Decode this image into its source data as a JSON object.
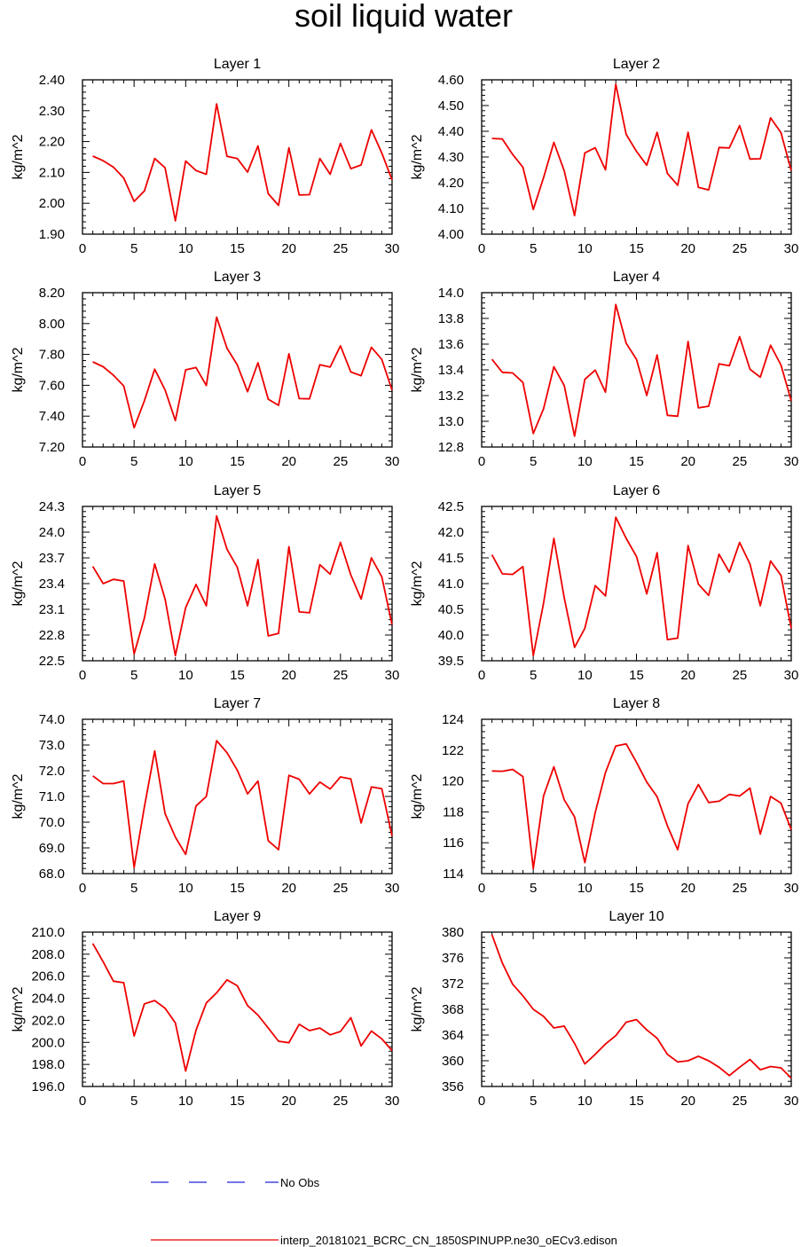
{
  "title": "soil liquid water",
  "legend": {
    "obs_label": "No Obs",
    "model_label": "interp_20181021_BCRC_CN_1850SPINUPP.ne30_oECv3.edison",
    "obs_color": "#2222dd",
    "model_color": "#ee0000"
  },
  "chart_data": [
    {
      "type": "line",
      "title": "Layer 1",
      "ylabel": "kg/m^2",
      "xlim": [
        0,
        30
      ],
      "ylim": [
        1.9,
        2.4
      ],
      "xticks": [
        "0",
        "5",
        "10",
        "15",
        "20",
        "25",
        "30"
      ],
      "yticks": [
        "1.90",
        "2.00",
        "2.10",
        "2.20",
        "2.30",
        "2.40"
      ],
      "x": [
        1,
        2,
        3,
        4,
        5,
        6,
        7,
        8,
        9,
        10,
        11,
        12,
        13,
        14,
        15,
        16,
        17,
        18,
        19,
        20,
        21,
        22,
        23,
        24,
        25,
        26,
        27,
        28,
        29,
        30
      ],
      "values": [
        2.153,
        2.138,
        2.117,
        2.082,
        2.006,
        2.04,
        2.145,
        2.115,
        1.943,
        2.137,
        2.106,
        2.094,
        2.322,
        2.152,
        2.145,
        2.101,
        2.186,
        2.031,
        1.993,
        2.18,
        2.027,
        2.028,
        2.145,
        2.094,
        2.194,
        2.112,
        2.124,
        2.238,
        2.163,
        2.076
      ]
    },
    {
      "type": "line",
      "title": "Layer 2",
      "ylabel": "kg/m^2",
      "xlim": [
        0,
        30
      ],
      "ylim": [
        4.0,
        4.6
      ],
      "xticks": [
        "0",
        "5",
        "10",
        "15",
        "20",
        "25",
        "30"
      ],
      "yticks": [
        "4.00",
        "4.10",
        "4.20",
        "4.30",
        "4.40",
        "4.50",
        "4.60"
      ],
      "x": [
        1,
        2,
        3,
        4,
        5,
        6,
        7,
        8,
        9,
        10,
        11,
        12,
        13,
        14,
        15,
        16,
        17,
        18,
        19,
        20,
        21,
        22,
        23,
        24,
        25,
        26,
        27,
        28,
        29,
        30
      ],
      "values": [
        4.372,
        4.37,
        4.31,
        4.26,
        4.096,
        4.22,
        4.357,
        4.246,
        4.072,
        4.316,
        4.336,
        4.25,
        4.583,
        4.388,
        4.322,
        4.268,
        4.396,
        4.236,
        4.19,
        4.396,
        4.182,
        4.172,
        4.337,
        4.335,
        4.422,
        4.292,
        4.293,
        4.452,
        4.395,
        4.247
      ]
    },
    {
      "type": "line",
      "title": "Layer 3",
      "ylabel": "kg/m^2",
      "xlim": [
        0,
        30
      ],
      "ylim": [
        7.2,
        8.2
      ],
      "xticks": [
        "0",
        "5",
        "10",
        "15",
        "20",
        "25",
        "30"
      ],
      "yticks": [
        "7.20",
        "7.40",
        "7.60",
        "7.80",
        "8.00",
        "8.20"
      ],
      "x": [
        1,
        2,
        3,
        4,
        5,
        6,
        7,
        8,
        9,
        10,
        11,
        12,
        13,
        14,
        15,
        16,
        17,
        18,
        19,
        20,
        21,
        22,
        23,
        24,
        25,
        26,
        27,
        28,
        29,
        30
      ],
      "values": [
        7.752,
        7.72,
        7.665,
        7.596,
        7.325,
        7.5,
        7.704,
        7.57,
        7.371,
        7.7,
        7.715,
        7.598,
        8.042,
        7.84,
        7.732,
        7.558,
        7.746,
        7.51,
        7.47,
        7.804,
        7.514,
        7.512,
        7.733,
        7.718,
        7.856,
        7.686,
        7.662,
        7.846,
        7.768,
        7.568
      ]
    },
    {
      "type": "line",
      "title": "Layer 4",
      "ylabel": "kg/m^2",
      "xlim": [
        0,
        30
      ],
      "ylim": [
        12.8,
        14.0
      ],
      "xticks": [
        "0",
        "5",
        "10",
        "15",
        "20",
        "25",
        "30"
      ],
      "yticks": [
        "12.8",
        "13.0",
        "13.2",
        "13.4",
        "13.6",
        "13.8",
        "14.0"
      ],
      "x": [
        1,
        2,
        3,
        4,
        5,
        6,
        7,
        8,
        9,
        10,
        11,
        12,
        13,
        14,
        15,
        16,
        17,
        18,
        19,
        20,
        21,
        22,
        23,
        24,
        25,
        26,
        27,
        28,
        29,
        30
      ],
      "values": [
        13.482,
        13.381,
        13.376,
        13.302,
        12.905,
        13.098,
        13.424,
        13.278,
        12.884,
        13.326,
        13.398,
        13.226,
        13.908,
        13.607,
        13.482,
        13.201,
        13.516,
        13.046,
        13.039,
        13.621,
        13.104,
        13.117,
        13.447,
        13.432,
        13.658,
        13.404,
        13.343,
        13.591,
        13.438,
        13.159
      ]
    },
    {
      "type": "line",
      "title": "Layer 5",
      "ylabel": "kg/m^2",
      "xlim": [
        0,
        30
      ],
      "ylim": [
        22.5,
        24.3
      ],
      "xticks": [
        "0",
        "5",
        "10",
        "15",
        "20",
        "25",
        "30"
      ],
      "yticks": [
        "22.5",
        "22.8",
        "23.1",
        "23.4",
        "23.7",
        "24.0",
        "24.3"
      ],
      "x": [
        1,
        2,
        3,
        4,
        5,
        6,
        7,
        8,
        9,
        10,
        11,
        12,
        13,
        14,
        15,
        16,
        17,
        18,
        19,
        20,
        21,
        22,
        23,
        24,
        25,
        26,
        27,
        28,
        29,
        30
      ],
      "values": [
        23.6,
        23.4,
        23.45,
        23.43,
        22.58,
        23.0,
        23.63,
        23.22,
        22.56,
        23.12,
        23.39,
        23.14,
        24.19,
        23.8,
        23.59,
        23.14,
        23.68,
        22.79,
        22.82,
        23.83,
        23.07,
        23.06,
        23.62,
        23.51,
        23.88,
        23.5,
        23.22,
        23.7,
        23.48,
        22.92
      ]
    },
    {
      "type": "line",
      "title": "Layer 6",
      "ylabel": "kg/m^2",
      "xlim": [
        0,
        30
      ],
      "ylim": [
        39.5,
        42.5
      ],
      "xticks": [
        "0",
        "5",
        "10",
        "15",
        "20",
        "25",
        "30"
      ],
      "yticks": [
        "39.5",
        "40.0",
        "40.5",
        "41.0",
        "41.5",
        "42.0",
        "42.5"
      ],
      "x": [
        1,
        2,
        3,
        4,
        5,
        6,
        7,
        8,
        9,
        10,
        11,
        12,
        13,
        14,
        15,
        16,
        17,
        18,
        19,
        20,
        21,
        22,
        23,
        24,
        25,
        26,
        27,
        28,
        29,
        30
      ],
      "values": [
        41.56,
        41.19,
        41.18,
        41.33,
        39.6,
        40.62,
        41.88,
        40.72,
        39.76,
        40.13,
        40.96,
        40.76,
        42.29,
        41.88,
        41.53,
        40.8,
        41.6,
        39.91,
        39.94,
        41.74,
        40.99,
        40.77,
        41.57,
        41.22,
        41.8,
        41.38,
        40.57,
        41.44,
        41.16,
        40.13
      ]
    },
    {
      "type": "line",
      "title": "Layer 7",
      "ylabel": "kg/m^2",
      "xlim": [
        0,
        30
      ],
      "ylim": [
        68.0,
        74.0
      ],
      "xticks": [
        "0",
        "5",
        "10",
        "15",
        "20",
        "25",
        "30"
      ],
      "yticks": [
        "68.0",
        "69.0",
        "70.0",
        "71.0",
        "72.0",
        "73.0",
        "74.0"
      ],
      "x": [
        1,
        2,
        3,
        4,
        5,
        6,
        7,
        8,
        9,
        10,
        11,
        12,
        13,
        14,
        15,
        16,
        17,
        18,
        19,
        20,
        21,
        22,
        23,
        24,
        25,
        26,
        27,
        28,
        29,
        30
      ],
      "values": [
        71.8,
        71.5,
        71.5,
        71.6,
        68.24,
        70.6,
        72.77,
        70.33,
        69.42,
        68.75,
        70.63,
        71.0,
        73.17,
        72.7,
        72.02,
        71.1,
        71.6,
        69.28,
        68.93,
        71.82,
        71.67,
        71.1,
        71.56,
        71.29,
        71.76,
        71.68,
        69.97,
        71.37,
        71.3,
        69.46
      ]
    },
    {
      "type": "line",
      "title": "Layer 8",
      "ylabel": "kg/m^2",
      "xlim": [
        0,
        30
      ],
      "ylim": [
        114,
        124
      ],
      "xticks": [
        "0",
        "5",
        "10",
        "15",
        "20",
        "25",
        "30"
      ],
      "yticks": [
        "114",
        "116",
        "118",
        "120",
        "122",
        "124"
      ],
      "x": [
        1,
        2,
        3,
        4,
        5,
        6,
        7,
        8,
        9,
        10,
        11,
        12,
        13,
        14,
        15,
        16,
        17,
        18,
        19,
        20,
        21,
        22,
        23,
        24,
        25,
        26,
        27,
        28,
        29,
        30
      ],
      "values": [
        120.65,
        120.63,
        120.75,
        120.29,
        114.32,
        119.04,
        120.92,
        118.78,
        117.68,
        114.71,
        117.95,
        120.56,
        122.27,
        122.41,
        121.22,
        119.93,
        118.98,
        117.1,
        115.55,
        118.53,
        119.77,
        118.61,
        118.69,
        119.13,
        119.03,
        119.54,
        116.56,
        119.0,
        118.57,
        116.85
      ]
    },
    {
      "type": "line",
      "title": "Layer 9",
      "ylabel": "kg/m^2",
      "xlim": [
        0,
        30
      ],
      "ylim": [
        196.0,
        210.0
      ],
      "xticks": [
        "0",
        "5",
        "10",
        "15",
        "20",
        "25",
        "30"
      ],
      "yticks": [
        "196.0",
        "198.0",
        "200.0",
        "202.0",
        "204.0",
        "206.0",
        "208.0",
        "210.0"
      ],
      "x": [
        1,
        2,
        3,
        4,
        5,
        6,
        7,
        8,
        9,
        10,
        11,
        12,
        13,
        14,
        15,
        16,
        17,
        18,
        19,
        20,
        21,
        22,
        23,
        24,
        25,
        26,
        27,
        28,
        29,
        30
      ],
      "values": [
        208.97,
        207.31,
        205.55,
        205.41,
        200.58,
        203.5,
        203.8,
        203.1,
        201.77,
        197.4,
        201.11,
        203.58,
        204.5,
        205.67,
        205.14,
        203.34,
        202.48,
        201.3,
        200.1,
        199.97,
        201.64,
        201.07,
        201.3,
        200.68,
        200.99,
        202.24,
        199.68,
        201.03,
        200.32,
        199.25
      ]
    },
    {
      "type": "line",
      "title": "Layer 10",
      "ylabel": "kg/m^2",
      "xlim": [
        0,
        30
      ],
      "ylim": [
        356,
        380
      ],
      "xticks": [
        "0",
        "5",
        "10",
        "15",
        "20",
        "25",
        "30"
      ],
      "yticks": [
        "356",
        "360",
        "364",
        "368",
        "372",
        "376",
        "380"
      ],
      "x": [
        1,
        2,
        3,
        4,
        5,
        6,
        7,
        8,
        9,
        10,
        11,
        12,
        13,
        14,
        15,
        16,
        17,
        18,
        19,
        20,
        21,
        22,
        23,
        24,
        25,
        26,
        27,
        28,
        29,
        30
      ],
      "values": [
        379.6,
        375.2,
        371.9,
        370.1,
        368.0,
        366.9,
        365.1,
        365.4,
        362.7,
        359.5,
        361.0,
        362.6,
        363.9,
        366.0,
        366.4,
        364.8,
        363.5,
        361.0,
        359.8,
        360.0,
        360.7,
        360.0,
        359.0,
        357.7,
        359.0,
        360.2,
        358.6,
        359.1,
        358.9,
        357.3
      ]
    }
  ]
}
